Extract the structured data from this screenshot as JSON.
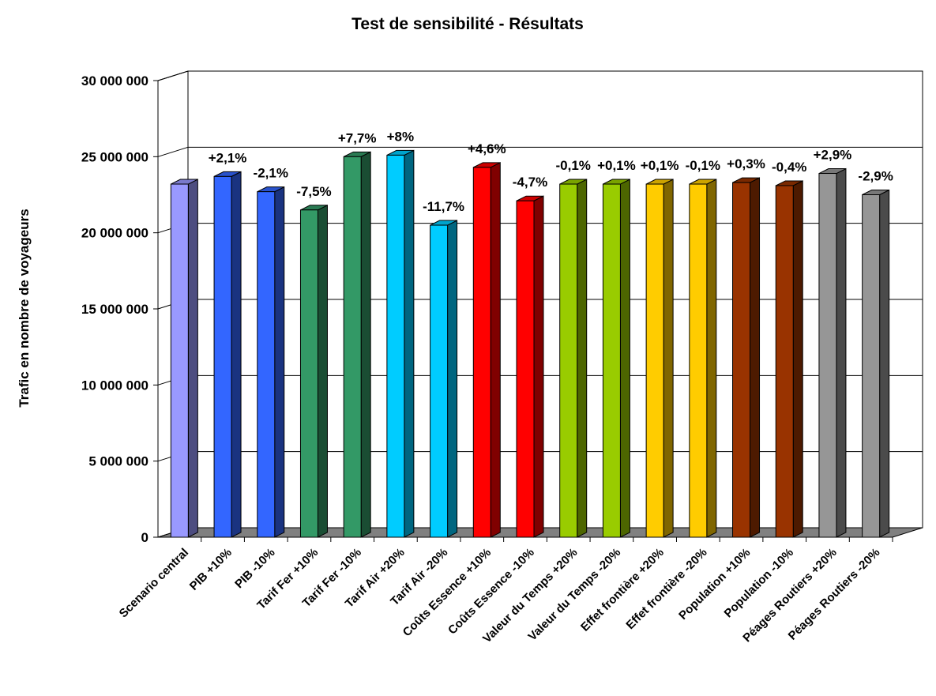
{
  "chart_data": {
    "type": "bar3d",
    "title": "Test de sensibilité - Résultats",
    "y_label": "Trafic en nombre de voyageurs",
    "categories": [
      "Scenario central",
      "PIB +10%",
      "PIB -10%",
      "Tarif Fer +10%",
      "Tarif Fer -10%",
      "Tarif Air +20%",
      "Tarif Air -20%",
      "Coûts Essence +10%",
      "Coûts Essence -10%",
      "Valeur du Temps +20%",
      "Valeur du Temps -20%",
      "Effet frontière +20%",
      "Effet frontière -20%",
      "Population +10%",
      "Population -10%",
      "Péages Routiers +20%",
      "Péages Routiers -20%"
    ],
    "values": [
      23200000,
      23700000,
      22700000,
      21500000,
      25000000,
      25100000,
      20500000,
      24300000,
      22100000,
      23200000,
      23200000,
      23200000,
      23200000,
      23300000,
      23100000,
      23900000,
      22500000
    ],
    "annotations": [
      null,
      "+2,1%",
      "-2,1%",
      "-7,5%",
      "+7,7%",
      "+8%",
      "-11,7%",
      "+4,6%",
      "-4,7%",
      "-0,1%",
      "+0,1%",
      "+0,1%",
      "-0,1%",
      "+0,3%",
      "-0,4%",
      "+2,9%",
      "-2,9%"
    ],
    "colors": [
      "#9999ff",
      "#3366ff",
      "#3366ff",
      "#339966",
      "#339966",
      "#00ccff",
      "#00ccff",
      "#ff0000",
      "#ff0000",
      "#99cc00",
      "#99cc00",
      "#ffcc00",
      "#ffcc00",
      "#993300",
      "#993300",
      "#969696",
      "#969696"
    ],
    "ylim": [
      0,
      30000000
    ],
    "yticks": [
      0,
      {
        "value": 5000000,
        "label": "5 000 000"
      },
      {
        "value": 10000000,
        "label": "10 000 000"
      },
      {
        "value": 15000000,
        "label": "15 000 000"
      },
      {
        "value": 20000000,
        "label": "20 000 000"
      },
      {
        "value": 25000000,
        "label": "25 000 000"
      },
      {
        "value": 30000000,
        "label": "30 000 000"
      }
    ],
    "grid": true
  }
}
